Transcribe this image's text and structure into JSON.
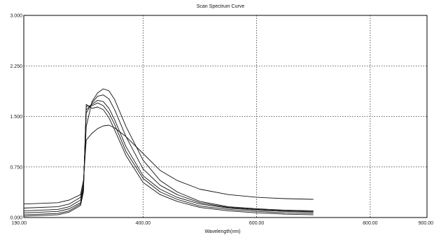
{
  "chart_data": {
    "type": "line",
    "title": "Scan Spectrum Curve",
    "xlabel": "Wavelength(nm)",
    "ylabel": "",
    "xlim": [
      190,
      900
    ],
    "ylim": [
      0,
      3
    ],
    "x_ticks": [
      190,
      400,
      600,
      800,
      900
    ],
    "x_tick_labels": [
      "190.00",
      "400.00",
      "600.00",
      "800.00",
      "900.00"
    ],
    "y_ticks": [
      0,
      0.75,
      1.5,
      2.25,
      3
    ],
    "y_tick_labels": [
      "0.000",
      "0.750",
      "1.500",
      "2.250",
      "3.000"
    ],
    "grid": true,
    "legend": "none",
    "colors": {
      "line": "#111111",
      "grid": "#333333",
      "axis": "#000000",
      "background": "#ffffff"
    },
    "series": [
      {
        "x": [
          190,
          250,
          270,
          290,
          295,
          300,
          310,
          320,
          330,
          340,
          350,
          370,
          400,
          430,
          460,
          500,
          550,
          600,
          650,
          700
        ],
        "y": [
          0.2,
          0.22,
          0.26,
          0.34,
          0.55,
          1.15,
          1.25,
          1.32,
          1.36,
          1.37,
          1.33,
          1.2,
          0.95,
          0.7,
          0.55,
          0.42,
          0.34,
          0.3,
          0.28,
          0.27
        ]
      },
      {
        "x": [
          190,
          250,
          270,
          290,
          295,
          300,
          310,
          320,
          330,
          340,
          350,
          370,
          400,
          430,
          460,
          500,
          550,
          600,
          650,
          700
        ],
        "y": [
          0.14,
          0.16,
          0.2,
          0.3,
          0.5,
          1.35,
          1.72,
          1.85,
          1.91,
          1.88,
          1.75,
          1.35,
          0.85,
          0.55,
          0.38,
          0.24,
          0.16,
          0.13,
          0.11,
          0.1
        ]
      },
      {
        "x": [
          190,
          250,
          270,
          290,
          295,
          300,
          310,
          320,
          330,
          340,
          350,
          370,
          400,
          430,
          460,
          500,
          550,
          600,
          650,
          700
        ],
        "y": [
          0.1,
          0.12,
          0.16,
          0.26,
          0.45,
          1.55,
          1.7,
          1.8,
          1.82,
          1.76,
          1.6,
          1.2,
          0.72,
          0.48,
          0.34,
          0.22,
          0.15,
          0.12,
          0.1,
          0.09
        ]
      },
      {
        "x": [
          190,
          250,
          270,
          290,
          295,
          300,
          310,
          320,
          330,
          340,
          350,
          370,
          400,
          430,
          460,
          500,
          550,
          600,
          650,
          700
        ],
        "y": [
          0.07,
          0.09,
          0.13,
          0.22,
          0.42,
          1.6,
          1.68,
          1.74,
          1.72,
          1.62,
          1.45,
          1.05,
          0.62,
          0.42,
          0.3,
          0.2,
          0.14,
          0.11,
          0.09,
          0.08
        ]
      },
      {
        "x": [
          190,
          250,
          270,
          290,
          295,
          300,
          310,
          320,
          330,
          340,
          350,
          370,
          400,
          430,
          460,
          500,
          550,
          600,
          650,
          700
        ],
        "y": [
          0.04,
          0.06,
          0.1,
          0.2,
          0.4,
          1.65,
          1.66,
          1.7,
          1.66,
          1.55,
          1.38,
          0.98,
          0.58,
          0.38,
          0.27,
          0.17,
          0.12,
          0.09,
          0.07,
          0.06
        ]
      },
      {
        "x": [
          190,
          250,
          270,
          290,
          295,
          300,
          310,
          320,
          330,
          340,
          350,
          370,
          400,
          430,
          460,
          500,
          550,
          600,
          650,
          700
        ],
        "y": [
          0.02,
          0.04,
          0.08,
          0.18,
          0.38,
          1.68,
          1.62,
          1.64,
          1.6,
          1.48,
          1.3,
          0.92,
          0.52,
          0.34,
          0.24,
          0.15,
          0.1,
          0.07,
          0.05,
          0.04
        ]
      }
    ]
  }
}
